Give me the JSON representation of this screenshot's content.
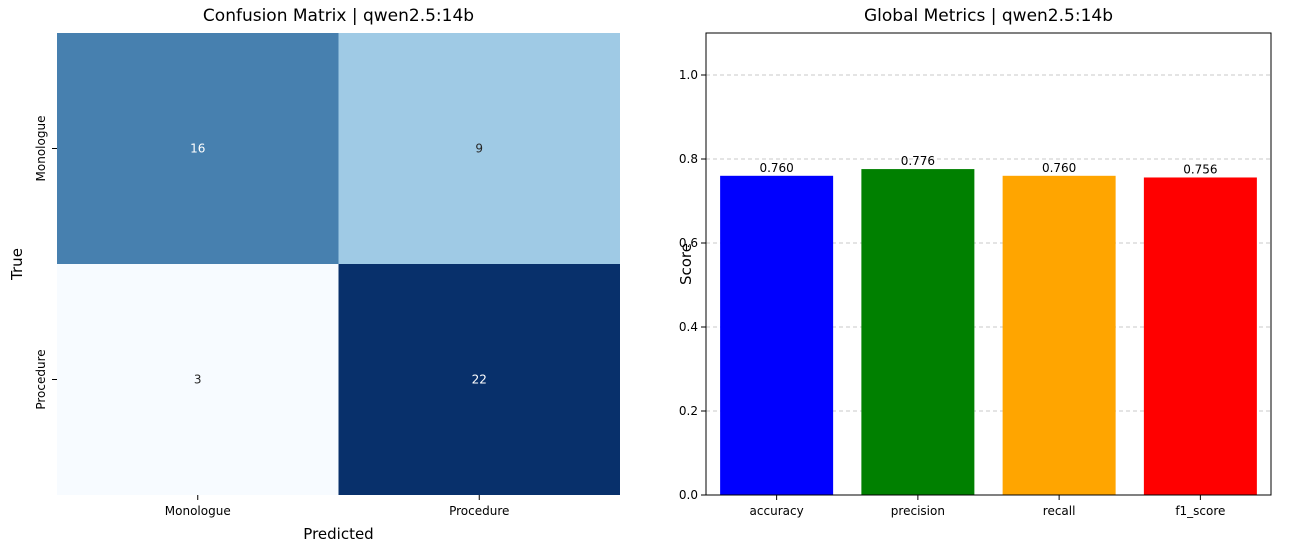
{
  "chart_data": [
    {
      "type": "heatmap",
      "title": "Confusion Matrix | qwen2.5:14b",
      "xlabel": "Predicted",
      "ylabel": "True",
      "x_categories": [
        "Monologue",
        "Procedure"
      ],
      "y_categories": [
        "Monologue",
        "Procedure"
      ],
      "values": [
        [
          16,
          9
        ],
        [
          3,
          22
        ]
      ],
      "colormap": "Blues",
      "colors": {
        "low": "#f7fbff",
        "mid": "#6baed6",
        "high": "#08306b",
        "annotation_dark": "#ffffff",
        "annotation_light": "#262626"
      }
    },
    {
      "type": "bar",
      "title": "Global Metrics | qwen2.5:14b",
      "xlabel": "",
      "ylabel": "Score",
      "categories": [
        "accuracy",
        "precision",
        "recall",
        "f1_score"
      ],
      "values": [
        0.76,
        0.776,
        0.76,
        0.756
      ],
      "value_labels": [
        "0.760",
        "0.776",
        "0.760",
        "0.756"
      ],
      "colors": [
        "#0000ff",
        "#008000",
        "#ffa500",
        "#ff0000"
      ],
      "ylim": [
        0,
        1.1
      ],
      "yticks": [
        "0.0",
        "0.2",
        "0.4",
        "0.6",
        "0.8",
        "1.0"
      ],
      "grid": "y-dashed"
    }
  ]
}
